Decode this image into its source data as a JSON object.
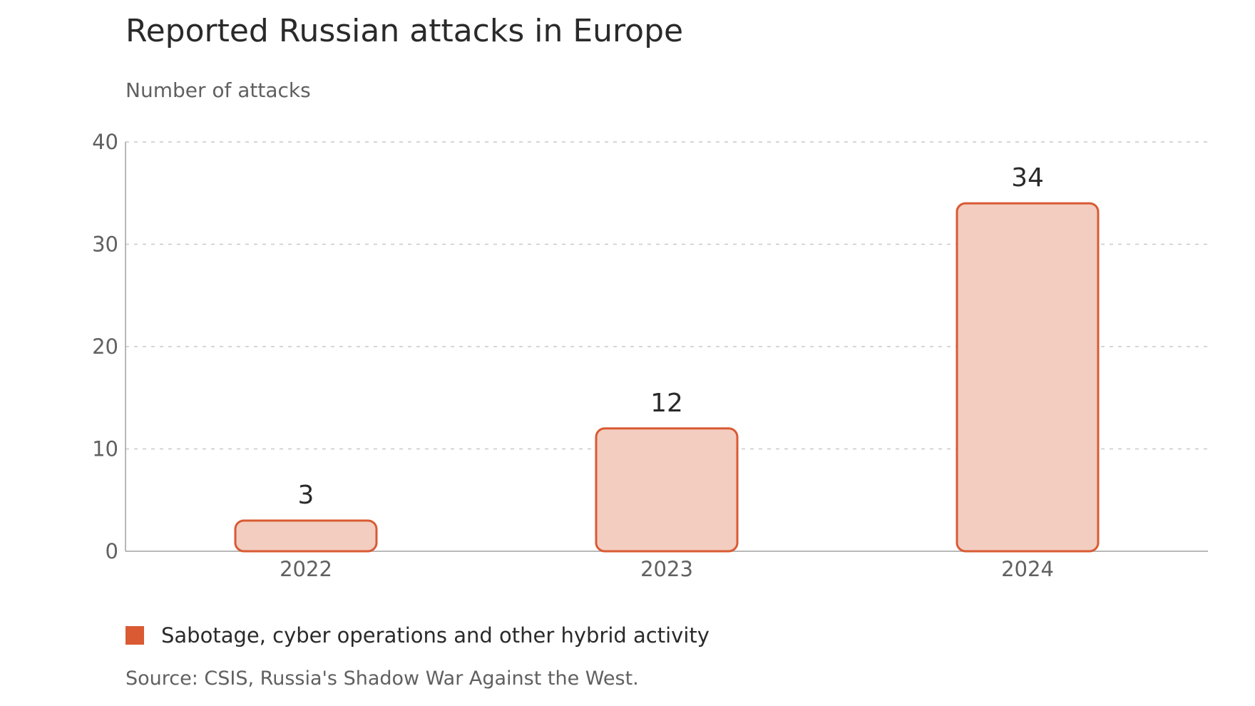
{
  "title": "Reported Russian attacks in Europe",
  "subtitle": "Number of attacks",
  "colors": {
    "bar_fill": "#f2cdc0",
    "bar_stroke": "#d95a33",
    "legend": "#d95a33"
  },
  "legend": {
    "label": "Sabotage, cyber operations and other hybrid activity"
  },
  "source": "Source: CSIS, Russia's Shadow War Against the West.",
  "chart_data": {
    "type": "bar",
    "categories": [
      "2022",
      "2023",
      "2024"
    ],
    "values": [
      3,
      12,
      34
    ],
    "title": "Reported Russian attacks in Europe",
    "ylabel": "Number of attacks",
    "ylim": [
      0,
      40
    ],
    "yticks": [
      0,
      10,
      20,
      30,
      40
    ],
    "grid": true,
    "legend_position": "bottom-left",
    "series": [
      {
        "name": "Sabotage, cyber operations and other hybrid activity",
        "values": [
          3,
          12,
          34
        ]
      }
    ]
  }
}
